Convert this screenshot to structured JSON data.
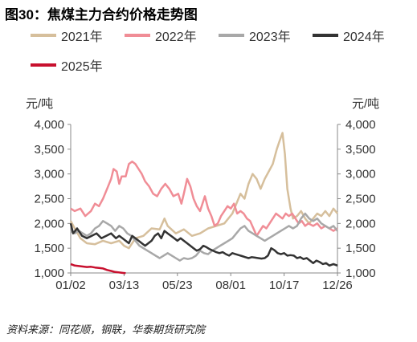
{
  "title": "图30：焦煤主力合约价格走势图",
  "unit_left": "元/吨",
  "unit_right": "元/吨",
  "source": "资料来源：同花顺，钢联，华泰期货研究院",
  "chart_data": {
    "type": "line",
    "x_tick_labels": [
      "01/02",
      "03/13",
      "05/23",
      "08/01",
      "10/17",
      "12/26"
    ],
    "y_ticks": [
      "1,000",
      "1,500",
      "2,000",
      "2,500",
      "3,000",
      "3,500",
      "4,000"
    ],
    "ylim": [
      1000,
      4000
    ],
    "grid": false,
    "legend": "top",
    "series": [
      {
        "name": "2021年",
        "color": "#d6bf9c",
        "values": [
          [
            0,
            2050
          ],
          [
            5,
            1900
          ],
          [
            12,
            1700
          ],
          [
            20,
            1600
          ],
          [
            30,
            1580
          ],
          [
            40,
            1650
          ],
          [
            50,
            1600
          ],
          [
            60,
            1650
          ],
          [
            66,
            1550
          ],
          [
            72,
            1500
          ],
          [
            80,
            1700
          ],
          [
            90,
            1750
          ],
          [
            100,
            1900
          ],
          [
            110,
            1880
          ],
          [
            116,
            2100
          ],
          [
            120,
            1950
          ],
          [
            130,
            1800
          ],
          [
            140,
            1880
          ],
          [
            150,
            1750
          ],
          [
            160,
            1800
          ],
          [
            170,
            1900
          ],
          [
            180,
            1950
          ],
          [
            190,
            2000
          ],
          [
            200,
            2200
          ],
          [
            210,
            2600
          ],
          [
            215,
            2500
          ],
          [
            220,
            2800
          ],
          [
            225,
            3000
          ],
          [
            230,
            2900
          ],
          [
            235,
            2700
          ],
          [
            240,
            2900
          ],
          [
            245,
            3050
          ],
          [
            250,
            3200
          ],
          [
            255,
            3500
          ],
          [
            258,
            3650
          ],
          [
            262,
            3830
          ],
          [
            265,
            3400
          ],
          [
            268,
            2700
          ],
          [
            272,
            2300
          ],
          [
            275,
            2100
          ],
          [
            280,
            2150
          ],
          [
            285,
            2250
          ],
          [
            290,
            2100
          ],
          [
            295,
            2000
          ],
          [
            300,
            2100
          ],
          [
            305,
            2200
          ],
          [
            310,
            2150
          ],
          [
            315,
            2250
          ],
          [
            320,
            2150
          ],
          [
            325,
            2300
          ],
          [
            330,
            2200
          ]
        ]
      },
      {
        "name": "2022年",
        "color": "#f08d96",
        "values": [
          [
            0,
            2300
          ],
          [
            5,
            2250
          ],
          [
            12,
            2300
          ],
          [
            18,
            2150
          ],
          [
            25,
            2250
          ],
          [
            30,
            2400
          ],
          [
            35,
            2350
          ],
          [
            40,
            2500
          ],
          [
            45,
            2700
          ],
          [
            50,
            2900
          ],
          [
            53,
            3100
          ],
          [
            57,
            3050
          ],
          [
            60,
            2800
          ],
          [
            63,
            2950
          ],
          [
            68,
            2950
          ],
          [
            72,
            3200
          ],
          [
            76,
            3250
          ],
          [
            80,
            3200
          ],
          [
            84,
            3100
          ],
          [
            88,
            3000
          ],
          [
            92,
            2850
          ],
          [
            97,
            2750
          ],
          [
            102,
            2600
          ],
          [
            107,
            2550
          ],
          [
            112,
            2700
          ],
          [
            117,
            2800
          ],
          [
            122,
            2700
          ],
          [
            127,
            2550
          ],
          [
            133,
            2600
          ],
          [
            137,
            2400
          ],
          [
            140,
            2600
          ],
          [
            144,
            2900
          ],
          [
            148,
            2750
          ],
          [
            152,
            2500
          ],
          [
            156,
            2350
          ],
          [
            160,
            2250
          ],
          [
            163,
            2400
          ],
          [
            166,
            2550
          ],
          [
            170,
            2300
          ],
          [
            174,
            2150
          ],
          [
            178,
            1950
          ],
          [
            182,
            2000
          ],
          [
            186,
            2150
          ],
          [
            190,
            2250
          ],
          [
            194,
            2350
          ],
          [
            198,
            2300
          ],
          [
            202,
            2400
          ],
          [
            206,
            2200
          ],
          [
            210,
            2250
          ],
          [
            214,
            2200
          ],
          [
            218,
            2100
          ],
          [
            222,
            2050
          ],
          [
            226,
            1900
          ],
          [
            230,
            1750
          ],
          [
            234,
            1850
          ],
          [
            238,
            1950
          ],
          [
            242,
            1900
          ],
          [
            246,
            2000
          ],
          [
            250,
            2100
          ],
          [
            254,
            2200
          ],
          [
            258,
            2150
          ],
          [
            262,
            2100
          ],
          [
            266,
            2200
          ],
          [
            270,
            2150
          ],
          [
            274,
            2200
          ],
          [
            278,
            2100
          ],
          [
            282,
            2000
          ],
          [
            286,
            2050
          ],
          [
            290,
            1950
          ],
          [
            294,
            2000
          ],
          [
            300,
            1950
          ],
          [
            305,
            2000
          ],
          [
            310,
            1900
          ],
          [
            315,
            1950
          ],
          [
            320,
            1900
          ],
          [
            325,
            1850
          ],
          [
            330,
            1900
          ]
        ]
      },
      {
        "name": "2023年",
        "color": "#a8a8a8",
        "values": [
          [
            0,
            1850
          ],
          [
            5,
            1800
          ],
          [
            10,
            1850
          ],
          [
            15,
            1800
          ],
          [
            20,
            1750
          ],
          [
            25,
            1800
          ],
          [
            30,
            1900
          ],
          [
            35,
            1950
          ],
          [
            40,
            2050
          ],
          [
            45,
            2000
          ],
          [
            50,
            1950
          ],
          [
            55,
            1850
          ],
          [
            60,
            1950
          ],
          [
            65,
            1900
          ],
          [
            70,
            1800
          ],
          [
            75,
            1750
          ],
          [
            80,
            1650
          ],
          [
            85,
            1550
          ],
          [
            90,
            1500
          ],
          [
            95,
            1450
          ],
          [
            100,
            1400
          ],
          [
            105,
            1350
          ],
          [
            110,
            1300
          ],
          [
            115,
            1350
          ],
          [
            120,
            1400
          ],
          [
            125,
            1350
          ],
          [
            130,
            1300
          ],
          [
            135,
            1250
          ],
          [
            140,
            1300
          ],
          [
            145,
            1280
          ],
          [
            150,
            1300
          ],
          [
            155,
            1350
          ],
          [
            160,
            1450
          ],
          [
            165,
            1400
          ],
          [
            170,
            1380
          ],
          [
            175,
            1450
          ],
          [
            180,
            1500
          ],
          [
            185,
            1550
          ],
          [
            190,
            1600
          ],
          [
            195,
            1650
          ],
          [
            200,
            1700
          ],
          [
            205,
            1800
          ],
          [
            210,
            1900
          ],
          [
            215,
            1950
          ],
          [
            220,
            1850
          ],
          [
            225,
            1800
          ],
          [
            230,
            1750
          ],
          [
            235,
            1700
          ],
          [
            240,
            1650
          ],
          [
            245,
            1700
          ],
          [
            250,
            1750
          ],
          [
            255,
            1800
          ],
          [
            260,
            1850
          ],
          [
            265,
            1900
          ],
          [
            270,
            1950
          ],
          [
            275,
            1900
          ],
          [
            280,
            1950
          ],
          [
            285,
            2100
          ],
          [
            290,
            2200
          ],
          [
            295,
            2100
          ],
          [
            300,
            2050
          ],
          [
            305,
            2100
          ],
          [
            310,
            2000
          ],
          [
            315,
            1950
          ],
          [
            320,
            1900
          ],
          [
            325,
            1950
          ],
          [
            330,
            1850
          ]
        ]
      },
      {
        "name": "2024年",
        "color": "#333333",
        "values": [
          [
            0,
            2000
          ],
          [
            3,
            1800
          ],
          [
            8,
            1900
          ],
          [
            14,
            1750
          ],
          [
            20,
            1700
          ],
          [
            26,
            1750
          ],
          [
            32,
            1800
          ],
          [
            38,
            1700
          ],
          [
            44,
            1750
          ],
          [
            50,
            1800
          ],
          [
            56,
            1700
          ],
          [
            60,
            1750
          ],
          [
            64,
            1700
          ],
          [
            68,
            1650
          ],
          [
            72,
            1600
          ],
          [
            76,
            1750
          ],
          [
            80,
            1700
          ],
          [
            84,
            1650
          ],
          [
            88,
            1600
          ],
          [
            92,
            1550
          ],
          [
            96,
            1600
          ],
          [
            100,
            1650
          ],
          [
            104,
            1750
          ],
          [
            108,
            1800
          ],
          [
            112,
            1700
          ],
          [
            116,
            1850
          ],
          [
            120,
            1800
          ],
          [
            124,
            1750
          ],
          [
            128,
            1700
          ],
          [
            132,
            1650
          ],
          [
            136,
            1700
          ],
          [
            140,
            1650
          ],
          [
            144,
            1600
          ],
          [
            148,
            1550
          ],
          [
            152,
            1500
          ],
          [
            156,
            1450
          ],
          [
            160,
            1480
          ],
          [
            164,
            1550
          ],
          [
            168,
            1520
          ],
          [
            172,
            1480
          ],
          [
            176,
            1450
          ],
          [
            180,
            1420
          ],
          [
            184,
            1400
          ],
          [
            188,
            1420
          ],
          [
            192,
            1380
          ],
          [
            196,
            1350
          ],
          [
            200,
            1400
          ],
          [
            204,
            1380
          ],
          [
            208,
            1360
          ],
          [
            212,
            1340
          ],
          [
            216,
            1320
          ],
          [
            220,
            1300
          ],
          [
            224,
            1320
          ],
          [
            228,
            1310
          ],
          [
            232,
            1300
          ],
          [
            236,
            1290
          ],
          [
            240,
            1300
          ],
          [
            244,
            1350
          ],
          [
            248,
            1500
          ],
          [
            252,
            1460
          ],
          [
            256,
            1400
          ],
          [
            260,
            1380
          ],
          [
            264,
            1400
          ],
          [
            268,
            1350
          ],
          [
            272,
            1360
          ],
          [
            276,
            1350
          ],
          [
            280,
            1300
          ],
          [
            284,
            1320
          ],
          [
            288,
            1280
          ],
          [
            292,
            1300
          ],
          [
            296,
            1250
          ],
          [
            300,
            1200
          ],
          [
            304,
            1250
          ],
          [
            308,
            1220
          ],
          [
            312,
            1180
          ],
          [
            316,
            1200
          ],
          [
            320,
            1150
          ],
          [
            325,
            1180
          ],
          [
            330,
            1150
          ]
        ]
      },
      {
        "name": "2025年",
        "color": "#c8102e",
        "values": [
          [
            0,
            1180
          ],
          [
            5,
            1150
          ],
          [
            10,
            1140
          ],
          [
            15,
            1130
          ],
          [
            20,
            1120
          ],
          [
            25,
            1125
          ],
          [
            30,
            1110
          ],
          [
            35,
            1100
          ],
          [
            40,
            1090
          ],
          [
            45,
            1060
          ],
          [
            50,
            1040
          ],
          [
            55,
            1020
          ],
          [
            60,
            1010
          ],
          [
            65,
            1000
          ],
          [
            68,
            995
          ]
        ]
      }
    ]
  }
}
